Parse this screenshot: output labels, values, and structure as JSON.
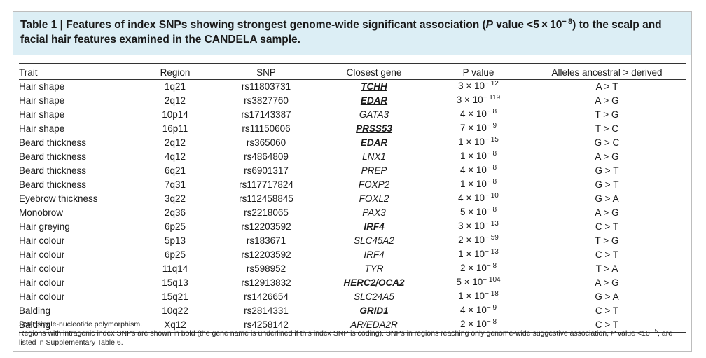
{
  "caption": {
    "label": "Table 1 | Features of index SNPs showing strongest genome-wide significant association (",
    "p_italic": "P",
    "mid": " value <5 × 10",
    "exp": "− 8",
    "end": ") to the scalp and facial hair features examined in the CANDELA sample."
  },
  "headers": {
    "trait": "Trait",
    "region": "Region",
    "snp": "SNP",
    "gene": "Closest gene",
    "pvalue": "P value",
    "alleles": "Alleles ancestral > derived"
  },
  "rows": [
    {
      "trait": "Hair shape",
      "region": "1q21",
      "snp": "rs11803731",
      "gene": "TCHH",
      "gene_style": "bold-underline",
      "p_base": "3 × 10",
      "p_exp": "− 12",
      "alleles": "A > T"
    },
    {
      "trait": "Hair shape",
      "region": "2q12",
      "snp": "rs3827760",
      "gene": "EDAR",
      "gene_style": "bold-underline",
      "p_base": "3 × 10",
      "p_exp": "− 119",
      "alleles": "A > G"
    },
    {
      "trait": "Hair shape",
      "region": "10p14",
      "snp": "rs17143387",
      "gene": "GATA3",
      "gene_style": "plain",
      "p_base": "4 × 10",
      "p_exp": "− 8",
      "alleles": "T > G"
    },
    {
      "trait": "Hair shape",
      "region": "16p11",
      "snp": "rs11150606",
      "gene": "PRSS53",
      "gene_style": "bold-underline",
      "p_base": "7 × 10",
      "p_exp": "− 9",
      "alleles": "T > C"
    },
    {
      "trait": "Beard thickness",
      "region": "2q12",
      "snp": "rs365060",
      "gene": "EDAR",
      "gene_style": "bold",
      "p_base": "1 × 10",
      "p_exp": "− 15",
      "alleles": "G > C"
    },
    {
      "trait": "Beard thickness",
      "region": "4q12",
      "snp": "rs4864809",
      "gene": "LNX1",
      "gene_style": "plain",
      "p_base": "1 × 10",
      "p_exp": "− 8",
      "alleles": "A > G"
    },
    {
      "trait": "Beard thickness",
      "region": "6q21",
      "snp": "rs6901317",
      "gene": "PREP",
      "gene_style": "plain",
      "p_base": "4 × 10",
      "p_exp": "− 8",
      "alleles": "G > T"
    },
    {
      "trait": "Beard thickness",
      "region": "7q31",
      "snp": "rs117717824",
      "gene": "FOXP2",
      "gene_style": "plain",
      "p_base": "1 × 10",
      "p_exp": "− 8",
      "alleles": "G > T"
    },
    {
      "trait": "Eyebrow thickness",
      "region": "3q22",
      "snp": "rs112458845",
      "gene": "FOXL2",
      "gene_style": "plain",
      "p_base": "4 × 10",
      "p_exp": "− 10",
      "alleles": "G > A"
    },
    {
      "trait": "Monobrow",
      "region": "2q36",
      "snp": "rs2218065",
      "gene": "PAX3",
      "gene_style": "plain",
      "p_base": "5 × 10",
      "p_exp": "− 8",
      "alleles": "A > G"
    },
    {
      "trait": "Hair greying",
      "region": "6p25",
      "snp": "rs12203592",
      "gene": "IRF4",
      "gene_style": "bold",
      "p_base": "3 × 10",
      "p_exp": "− 13",
      "alleles": "C > T"
    },
    {
      "trait": "Hair colour",
      "region": "5p13",
      "snp": "rs183671",
      "gene": "SLC45A2",
      "gene_style": "plain",
      "p_base": "2 × 10",
      "p_exp": "− 59",
      "alleles": "T > G"
    },
    {
      "trait": "Hair colour",
      "region": "6p25",
      "snp": "rs12203592",
      "gene": "IRF4",
      "gene_style": "plain",
      "p_base": "1 × 10",
      "p_exp": "− 13",
      "alleles": "C > T"
    },
    {
      "trait": "Hair colour",
      "region": "11q14",
      "snp": "rs598952",
      "gene": "TYR",
      "gene_style": "plain",
      "p_base": "2 × 10",
      "p_exp": "− 8",
      "alleles": "T > A"
    },
    {
      "trait": "Hair colour",
      "region": "15q13",
      "snp": "rs12913832",
      "gene": "HERC2/OCA2",
      "gene_style": "bold",
      "p_base": "5 × 10",
      "p_exp": "− 104",
      "alleles": "A > G"
    },
    {
      "trait": "Hair colour",
      "region": "15q21",
      "snp": "rs1426654",
      "gene": "SLC24A5",
      "gene_style": "plain",
      "p_base": "1 × 10",
      "p_exp": "− 18",
      "alleles": "G > A"
    },
    {
      "trait": "Balding",
      "region": "10q22",
      "snp": "rs2814331",
      "gene": "GRID1",
      "gene_style": "bold",
      "p_base": "4 × 10",
      "p_exp": "− 9",
      "alleles": "C > T"
    },
    {
      "trait": "Balding",
      "region": "Xq12",
      "snp": "rs4258142",
      "gene": "AR/EDA2R",
      "gene_style": "plain",
      "p_base": "2 × 10",
      "p_exp": "− 8",
      "alleles": "C > T"
    }
  ],
  "footnotes": {
    "line1": "SNP, single-nucleotide polymorphism.",
    "line2_a": "Regions with intragenic index SNPs are shown in bold (the gene name is underlined if this index SNP is coding). SNPs in regions reaching only genome-wide suggestive association, ",
    "line2_p": "P",
    "line2_b": " value <10",
    "line2_exp": "− 5",
    "line2_c": ", are listed in Supplementary Table 6."
  }
}
